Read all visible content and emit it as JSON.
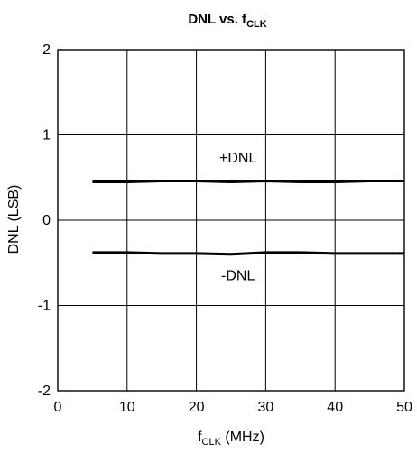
{
  "chart_data": {
    "type": "line",
    "title": {
      "main": "DNL vs. f",
      "sub": "CLK"
    },
    "xlabel": {
      "main": "f",
      "sub": "CLK",
      "unit": " (MHz)"
    },
    "ylabel": "DNL (LSB)",
    "xlim": [
      0,
      50
    ],
    "ylim": [
      -2,
      2
    ],
    "xticks": [
      0,
      10,
      20,
      30,
      40,
      50
    ],
    "yticks": [
      2,
      1,
      0,
      -1,
      -2
    ],
    "xtick_labels": [
      "0",
      "10",
      "20",
      "30",
      "40",
      "50"
    ],
    "ytick_labels": [
      "2",
      "1",
      "0",
      "-1",
      "-2"
    ],
    "grid": true,
    "series": [
      {
        "name": "+DNL",
        "x": [
          5,
          10,
          15,
          20,
          25,
          30,
          35,
          40,
          45,
          50
        ],
        "y": [
          0.45,
          0.45,
          0.46,
          0.46,
          0.45,
          0.46,
          0.45,
          0.45,
          0.46,
          0.46
        ]
      },
      {
        "name": "-DNL",
        "x": [
          5,
          10,
          15,
          20,
          25,
          30,
          35,
          40,
          45,
          50
        ],
        "y": [
          -0.38,
          -0.38,
          -0.39,
          -0.39,
          -0.4,
          -0.38,
          -0.38,
          -0.39,
          -0.39,
          -0.39
        ]
      }
    ],
    "series_label_positions": [
      {
        "name": "+DNL",
        "x": 26,
        "y": 0.74
      },
      {
        "name": "-DNL",
        "x": 26,
        "y": -0.64
      }
    ]
  }
}
